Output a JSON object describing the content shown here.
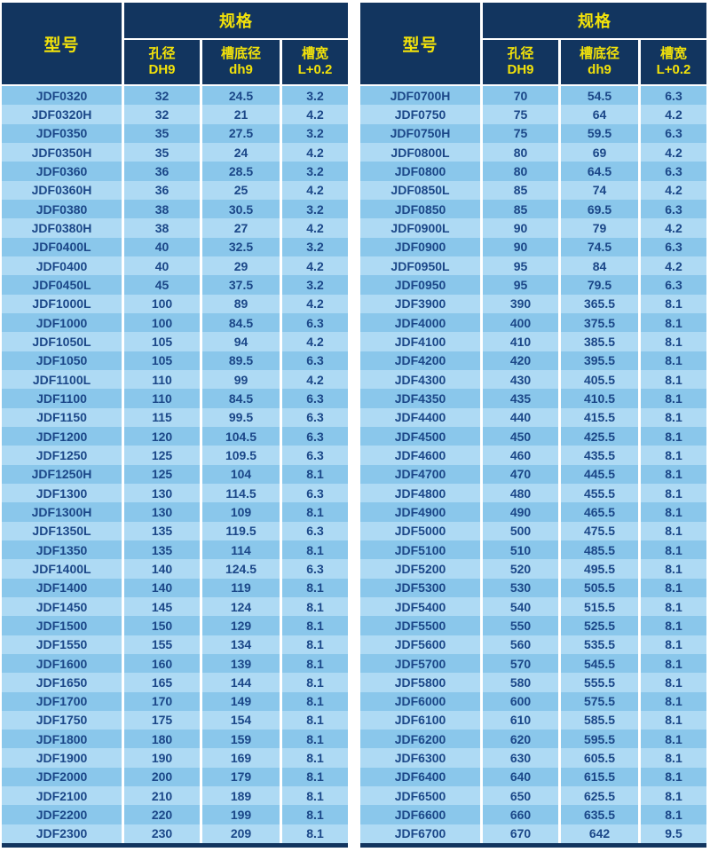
{
  "colors": {
    "header_bg": "#12355f",
    "header_text": "#f2e20a",
    "row_dark": "#8ac7eb",
    "row_light": "#aedaf4",
    "cell_text": "#1b4788",
    "separator": "#ffffff"
  },
  "header": {
    "model": "型号",
    "spec": "规格",
    "sub": [
      {
        "line1": "孔径",
        "line2": "DH9"
      },
      {
        "line1": "槽底径",
        "line2": "dh9"
      },
      {
        "line1": "槽宽",
        "line2": "L+0.2"
      }
    ]
  },
  "tables": [
    {
      "rows": [
        [
          "JDF0320",
          "32",
          "24.5",
          "3.2"
        ],
        [
          "JDF0320H",
          "32",
          "21",
          "4.2"
        ],
        [
          "JDF0350",
          "35",
          "27.5",
          "3.2"
        ],
        [
          "JDF0350H",
          "35",
          "24",
          "4.2"
        ],
        [
          "JDF0360",
          "36",
          "28.5",
          "3.2"
        ],
        [
          "JDF0360H",
          "36",
          "25",
          "4.2"
        ],
        [
          "JDF0380",
          "38",
          "30.5",
          "3.2"
        ],
        [
          "JDF0380H",
          "38",
          "27",
          "4.2"
        ],
        [
          "JDF0400L",
          "40",
          "32.5",
          "3.2"
        ],
        [
          "JDF0400",
          "40",
          "29",
          "4.2"
        ],
        [
          "JDF0450L",
          "45",
          "37.5",
          "3.2"
        ],
        [
          "JDF1000L",
          "100",
          "89",
          "4.2"
        ],
        [
          "JDF1000",
          "100",
          "84.5",
          "6.3"
        ],
        [
          "JDF1050L",
          "105",
          "94",
          "4.2"
        ],
        [
          "JDF1050",
          "105",
          "89.5",
          "6.3"
        ],
        [
          "JDF1100L",
          "110",
          "99",
          "4.2"
        ],
        [
          "JDF1100",
          "110",
          "84.5",
          "6.3"
        ],
        [
          "JDF1150",
          "115",
          "99.5",
          "6.3"
        ],
        [
          "JDF1200",
          "120",
          "104.5",
          "6.3"
        ],
        [
          "JDF1250",
          "125",
          "109.5",
          "6.3"
        ],
        [
          "JDF1250H",
          "125",
          "104",
          "8.1"
        ],
        [
          "JDF1300",
          "130",
          "114.5",
          "6.3"
        ],
        [
          "JDF1300H",
          "130",
          "109",
          "8.1"
        ],
        [
          "JDF1350L",
          "135",
          "119.5",
          "6.3"
        ],
        [
          "JDF1350",
          "135",
          "114",
          "8.1"
        ],
        [
          "JDF1400L",
          "140",
          "124.5",
          "6.3"
        ],
        [
          "JDF1400",
          "140",
          "119",
          "8.1"
        ],
        [
          "JDF1450",
          "145",
          "124",
          "8.1"
        ],
        [
          "JDF1500",
          "150",
          "129",
          "8.1"
        ],
        [
          "JDF1550",
          "155",
          "134",
          "8.1"
        ],
        [
          "JDF1600",
          "160",
          "139",
          "8.1"
        ],
        [
          "JDF1650",
          "165",
          "144",
          "8.1"
        ],
        [
          "JDF1700",
          "170",
          "149",
          "8.1"
        ],
        [
          "JDF1750",
          "175",
          "154",
          "8.1"
        ],
        [
          "JDF1800",
          "180",
          "159",
          "8.1"
        ],
        [
          "JDF1900",
          "190",
          "169",
          "8.1"
        ],
        [
          "JDF2000",
          "200",
          "179",
          "8.1"
        ],
        [
          "JDF2100",
          "210",
          "189",
          "8.1"
        ],
        [
          "JDF2200",
          "220",
          "199",
          "8.1"
        ],
        [
          "JDF2300",
          "230",
          "209",
          "8.1"
        ]
      ]
    },
    {
      "rows": [
        [
          "JDF0700H",
          "70",
          "54.5",
          "6.3"
        ],
        [
          "JDF0750",
          "75",
          "64",
          "4.2"
        ],
        [
          "JDF0750H",
          "75",
          "59.5",
          "6.3"
        ],
        [
          "JDF0800L",
          "80",
          "69",
          "4.2"
        ],
        [
          "JDF0800",
          "80",
          "64.5",
          "6.3"
        ],
        [
          "JDF0850L",
          "85",
          "74",
          "4.2"
        ],
        [
          "JDF0850",
          "85",
          "69.5",
          "6.3"
        ],
        [
          "JDF0900L",
          "90",
          "79",
          "4.2"
        ],
        [
          "JDF0900",
          "90",
          "74.5",
          "6.3"
        ],
        [
          "JDF0950L",
          "95",
          "84",
          "4.2"
        ],
        [
          "JDF0950",
          "95",
          "79.5",
          "6.3"
        ],
        [
          "JDF3900",
          "390",
          "365.5",
          "8.1"
        ],
        [
          "JDF4000",
          "400",
          "375.5",
          "8.1"
        ],
        [
          "JDF4100",
          "410",
          "385.5",
          "8.1"
        ],
        [
          "JDF4200",
          "420",
          "395.5",
          "8.1"
        ],
        [
          "JDF4300",
          "430",
          "405.5",
          "8.1"
        ],
        [
          "JDF4350",
          "435",
          "410.5",
          "8.1"
        ],
        [
          "JDF4400",
          "440",
          "415.5",
          "8.1"
        ],
        [
          "JDF4500",
          "450",
          "425.5",
          "8.1"
        ],
        [
          "JDF4600",
          "460",
          "435.5",
          "8.1"
        ],
        [
          "JDF4700",
          "470",
          "445.5",
          "8.1"
        ],
        [
          "JDF4800",
          "480",
          "455.5",
          "8.1"
        ],
        [
          "JDF4900",
          "490",
          "465.5",
          "8.1"
        ],
        [
          "JDF5000",
          "500",
          "475.5",
          "8.1"
        ],
        [
          "JDF5100",
          "510",
          "485.5",
          "8.1"
        ],
        [
          "JDF5200",
          "520",
          "495.5",
          "8.1"
        ],
        [
          "JDF5300",
          "530",
          "505.5",
          "8.1"
        ],
        [
          "JDF5400",
          "540",
          "515.5",
          "8.1"
        ],
        [
          "JDF5500",
          "550",
          "525.5",
          "8.1"
        ],
        [
          "JDF5600",
          "560",
          "535.5",
          "8.1"
        ],
        [
          "JDF5700",
          "570",
          "545.5",
          "8.1"
        ],
        [
          "JDF5800",
          "580",
          "555.5",
          "8.1"
        ],
        [
          "JDF6000",
          "600",
          "575.5",
          "8.1"
        ],
        [
          "JDF6100",
          "610",
          "585.5",
          "8.1"
        ],
        [
          "JDF6200",
          "620",
          "595.5",
          "8.1"
        ],
        [
          "JDF6300",
          "630",
          "605.5",
          "8.1"
        ],
        [
          "JDF6400",
          "640",
          "615.5",
          "8.1"
        ],
        [
          "JDF6500",
          "650",
          "625.5",
          "8.1"
        ],
        [
          "JDF6600",
          "660",
          "635.5",
          "8.1"
        ],
        [
          "JDF6700",
          "670",
          "642",
          "9.5"
        ]
      ]
    }
  ]
}
